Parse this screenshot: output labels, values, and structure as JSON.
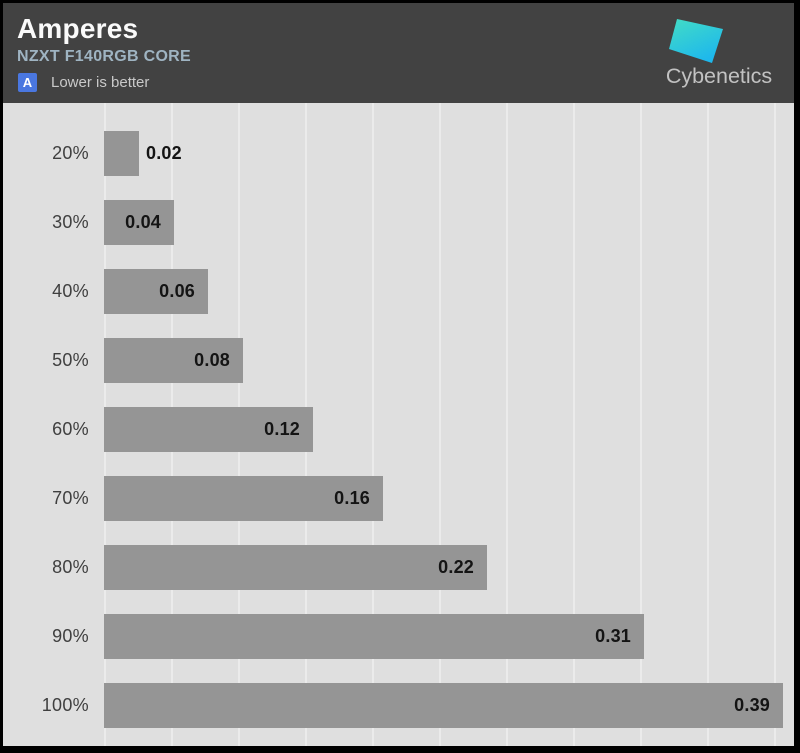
{
  "header": {
    "title": "Amperes",
    "subtitle": "NZXT F140RGB CORE",
    "badge": {
      "letter": "A",
      "label": "Lower is better",
      "color": "#4a77e0"
    },
    "logo": {
      "text": "Cybenetics",
      "icon": "cybenetics-parallelogram-icon",
      "gradient": [
        "#43ddc5",
        "#1eb8ec"
      ],
      "text_color": "#c2c2c2"
    },
    "background": "#424242",
    "title_color": "#fafafa",
    "subtitle_color": "#9fb4c2"
  },
  "chart_data": {
    "type": "bar",
    "orientation": "horizontal",
    "title": "Amperes",
    "subtitle": "NZXT F140RGB CORE",
    "note": "Lower is better",
    "categories": [
      "20%",
      "30%",
      "40%",
      "50%",
      "60%",
      "70%",
      "80%",
      "90%",
      "100%"
    ],
    "values": [
      0.02,
      0.04,
      0.06,
      0.08,
      0.12,
      0.16,
      0.22,
      0.31,
      0.39
    ],
    "value_labels": [
      "0.02",
      "0.04",
      "0.06",
      "0.08",
      "0.12",
      "0.16",
      "0.22",
      "0.31",
      "0.39"
    ],
    "xlabel": "",
    "ylabel": "",
    "xlim": [
      0,
      0.4
    ],
    "grid": "vertical",
    "legend": "none",
    "bar_color": "#959595",
    "plot_background": "#dfdfdf",
    "gridline_color": "#ebebeb",
    "category_label_color": "#3f3f3f",
    "value_label_color": "#141414"
  }
}
